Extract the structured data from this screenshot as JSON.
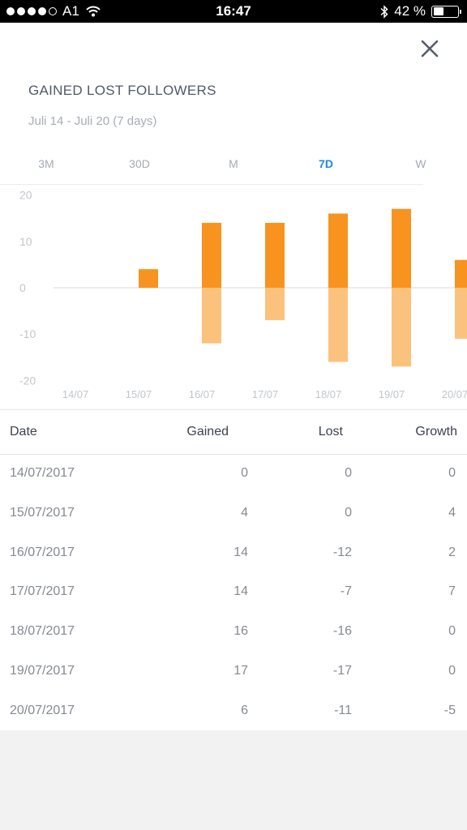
{
  "status_bar": {
    "carrier": "A1",
    "time": "16:47",
    "battery": "42 %",
    "battery_level": 0.42,
    "signal_bars": 4
  },
  "header": {
    "title": "GAINED LOST FOLLOWERS",
    "subtitle": "Juli 14 - Juli 20 (7 days)"
  },
  "tabs": [
    {
      "label": "3M",
      "active": false
    },
    {
      "label": "30D",
      "active": false
    },
    {
      "label": "M",
      "active": false
    },
    {
      "label": "7D",
      "active": true
    },
    {
      "label": "W",
      "active": false
    }
  ],
  "colors": {
    "gained": "#f7931e",
    "lost": "#fbc27e",
    "active_tab": "#1e88e5"
  },
  "chart_data": {
    "type": "bar",
    "categories": [
      "14/07",
      "15/07",
      "16/07",
      "17/07",
      "18/07",
      "19/07",
      "20/07"
    ],
    "series": [
      {
        "values": [
          0,
          4,
          14,
          14,
          16,
          17,
          6
        ]
      },
      {
        "values": [
          0,
          0,
          -12,
          -7,
          -16,
          -17,
          -11
        ]
      }
    ],
    "yticks": [
      "20",
      "10",
      "0",
      "-10",
      "-20"
    ],
    "ylim": [
      -20,
      20
    ]
  },
  "table": {
    "headers": {
      "date": "Date",
      "gained": "Gained",
      "lost": "Lost",
      "growth": "Growth"
    },
    "rows": [
      {
        "date": "14/07/2017",
        "gained": "0",
        "lost": "0",
        "growth": "0"
      },
      {
        "date": "15/07/2017",
        "gained": "4",
        "lost": "0",
        "growth": "4"
      },
      {
        "date": "16/07/2017",
        "gained": "14",
        "lost": "-12",
        "growth": "2"
      },
      {
        "date": "17/07/2017",
        "gained": "14",
        "lost": "-7",
        "growth": "7"
      },
      {
        "date": "18/07/2017",
        "gained": "16",
        "lost": "-16",
        "growth": "0"
      },
      {
        "date": "19/07/2017",
        "gained": "17",
        "lost": "-17",
        "growth": "0"
      },
      {
        "date": "20/07/2017",
        "gained": "6",
        "lost": "-11",
        "growth": "-5"
      }
    ]
  }
}
